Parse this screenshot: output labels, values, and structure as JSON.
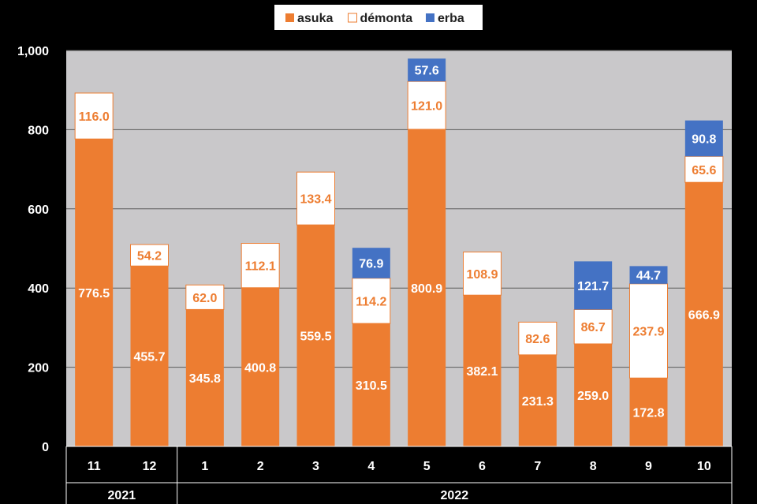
{
  "chart_data": {
    "type": "bar",
    "stacked": true,
    "categories": [
      "11",
      "12",
      "1",
      "2",
      "3",
      "4",
      "5",
      "6",
      "7",
      "8",
      "9",
      "10"
    ],
    "year_groups": [
      {
        "label": "2021",
        "count": 2
      },
      {
        "label": "2022",
        "count": 10
      }
    ],
    "series": [
      {
        "name": "asuka",
        "color": "#ED7D31",
        "values": [
          776.5,
          455.7,
          345.8,
          400.8,
          559.5,
          310.5,
          800.9,
          382.1,
          231.3,
          259.0,
          172.8,
          666.9
        ],
        "labels": [
          "776.5",
          "455.7",
          "345.8",
          "400.8",
          "559.5",
          "310.5",
          "800.9",
          "382.1",
          "231.3",
          "259.0",
          "172.8",
          "666.9"
        ]
      },
      {
        "name": "démonta",
        "color": "#FFFFFF",
        "values": [
          116.0,
          54.2,
          62.0,
          112.1,
          133.4,
          114.2,
          121.0,
          108.9,
          82.6,
          86.7,
          237.9,
          65.6
        ],
        "labels": [
          "116.0",
          "54.2",
          "62.0",
          "112.1",
          "133.4",
          "114.2",
          "121.0",
          "108.9",
          "82.6",
          "86.7",
          "237.9",
          "65.6"
        ]
      },
      {
        "name": "erba",
        "color": "#4472C4",
        "values": [
          null,
          null,
          null,
          null,
          null,
          76.9,
          57.6,
          null,
          null,
          121.7,
          44.7,
          90.8
        ],
        "labels": [
          null,
          null,
          null,
          null,
          null,
          "76.9",
          "57.6",
          null,
          null,
          "121.7",
          "44.7",
          "90.8"
        ]
      }
    ],
    "y_ticks": [
      "0",
      "200",
      "400",
      "600",
      "800",
      "1,000"
    ],
    "ylim": [
      0,
      1000
    ],
    "grid": true,
    "plot_background": "#C9C8CA",
    "legend_position": "top-center"
  }
}
